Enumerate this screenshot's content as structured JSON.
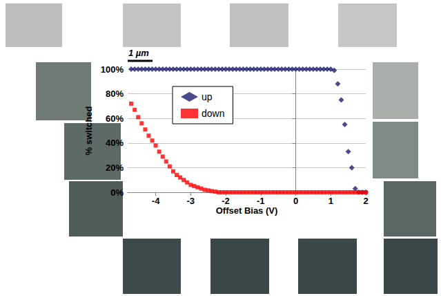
{
  "chart_data": {
    "type": "scatter",
    "annotation": "1 µm",
    "x_label": "Offset Bias (V)",
    "y_label": "% switched",
    "x": [
      -4.7,
      -4.6,
      -4.5,
      -4.4,
      -4.3,
      -4.2,
      -4.1,
      -4.0,
      -3.9,
      -3.8,
      -3.7,
      -3.6,
      -3.5,
      -3.4,
      -3.3,
      -3.2,
      -3.1,
      -3.0,
      -2.9,
      -2.8,
      -2.7,
      -2.6,
      -2.5,
      -2.4,
      -2.3,
      -2.2,
      -2.1,
      -2.0,
      -1.9,
      -1.8,
      -1.7,
      -1.6,
      -1.5,
      -1.4,
      -1.3,
      -1.2,
      -1.1,
      -1.0,
      -0.9,
      -0.8,
      -0.7,
      -0.6,
      -0.5,
      -0.4,
      -0.3,
      -0.2,
      -0.1,
      0,
      0.1,
      0.2,
      0.3,
      0.4,
      0.5,
      0.6,
      0.7,
      0.8,
      0.9,
      1.0,
      1.1,
      1.2,
      1.3,
      1.4,
      1.5,
      1.6,
      1.7,
      1.8,
      1.9,
      2.0
    ],
    "series": [
      {
        "name": "up",
        "color": "#1c1c6e",
        "marker": "diamond",
        "values": [
          100,
          100,
          100,
          100,
          100,
          100,
          100,
          100,
          100,
          100,
          100,
          100,
          100,
          100,
          100,
          100,
          100,
          100,
          100,
          100,
          100,
          100,
          100,
          100,
          100,
          100,
          100,
          100,
          100,
          100,
          100,
          100,
          100,
          100,
          100,
          100,
          100,
          100,
          100,
          100,
          100,
          100,
          100,
          100,
          100,
          100,
          100,
          100,
          100,
          100,
          100,
          100,
          100,
          100,
          100,
          100,
          100,
          100,
          99,
          88,
          75,
          55,
          33,
          20,
          3,
          0,
          0,
          0
        ]
      },
      {
        "name": "down",
        "color": "#ff0000",
        "marker": "square",
        "values": [
          72,
          67,
          61,
          56,
          51,
          46,
          42,
          38,
          33,
          29,
          25,
          21,
          17,
          14,
          12,
          10,
          8,
          6,
          5,
          4,
          3,
          2,
          1.5,
          1,
          0.5,
          0,
          0,
          0,
          0,
          0,
          0,
          0,
          0,
          0,
          0,
          0,
          0,
          0,
          0,
          0,
          0,
          0,
          0,
          0,
          0,
          0,
          0,
          0,
          0,
          0,
          0,
          0,
          0,
          0,
          0,
          0,
          0,
          0,
          0,
          0,
          0,
          0,
          0,
          0,
          0,
          0,
          0,
          0
        ]
      }
    ],
    "xlim": [
      -4.8,
      2
    ],
    "xticks": [
      -4,
      -3,
      -2,
      -1,
      0,
      1,
      2
    ],
    "ylim": [
      0,
      100
    ],
    "yticks": [
      {
        "value": 0,
        "label": "0%"
      },
      {
        "value": 20,
        "label": "20%"
      },
      {
        "value": 40,
        "label": "40%"
      },
      {
        "value": 60,
        "label": "60%"
      },
      {
        "value": 80,
        "label": "80%"
      },
      {
        "value": 100,
        "label": "100%"
      }
    ],
    "grid": true,
    "legend": "upper left"
  }
}
